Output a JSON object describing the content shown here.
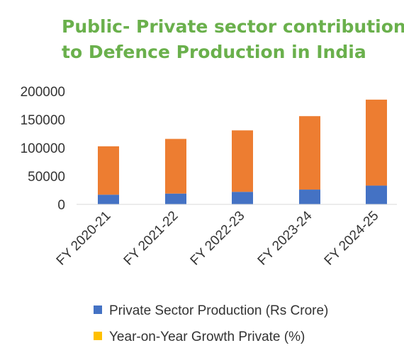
{
  "chart_data": {
    "type": "bar",
    "stacked": true,
    "title_lines": [
      "Public- Private sector contribution",
      "to Defence Production in India"
    ],
    "categories": [
      "FY 2020-21",
      "FY 2021-22",
      "FY 2022-23",
      "FY 2023-24",
      "FY 2024-25"
    ],
    "series": [
      {
        "name": "Private Sector Production (Rs Crore)",
        "color": "#4472c4",
        "values": [
          17000,
          19000,
          22000,
          26000,
          33000
        ]
      },
      {
        "name": "",
        "color": "#ed7d31",
        "values": [
          85000,
          96000,
          108000,
          129000,
          151000
        ]
      }
    ],
    "legend": [
      {
        "label": "Private Sector Production (Rs Crore)",
        "color": "#4472c4"
      },
      {
        "label": "Year-on-Year Growth Private (%)",
        "color": "#ffc000"
      }
    ],
    "y_ticks": [
      "0",
      "50000",
      "100000",
      "150000",
      "200000"
    ],
    "ylim": [
      0,
      200000
    ],
    "grid": false,
    "legend_position": "bottom"
  }
}
